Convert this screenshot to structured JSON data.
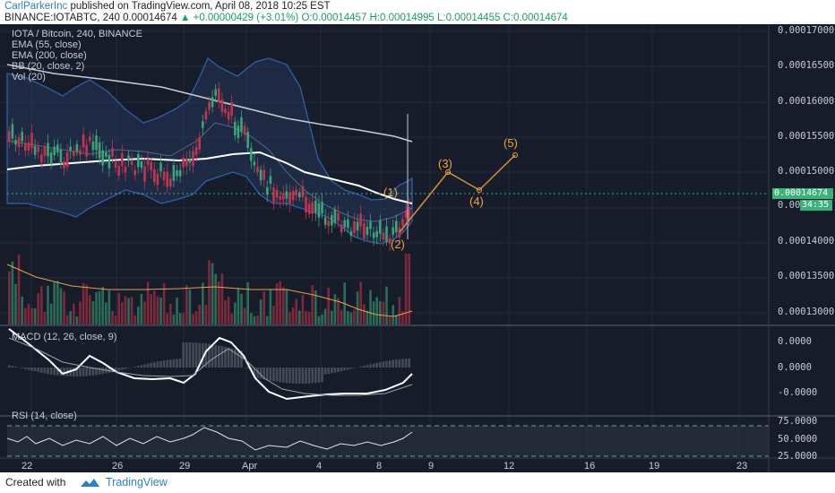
{
  "header": {
    "author": "CarlParkerInc",
    "published_text": "published on TradingView.com, April 08, 2018 10:25 EST",
    "symbol_line": "BINANCE:IOTABTC, 240  0.00014674",
    "change": "▲ +0.00000429 (+3.01%)",
    "ohlc": "O:0.00014457 H:0.00014995 L:0.00014455 C:0.00014674"
  },
  "legend": {
    "title": "IOTA / Bitcoin, 240, BINANCE",
    "ema55": "EMA (55, close)",
    "ema200": "EMA (200, close)",
    "bb": "BB (20, close, 2)",
    "vol": "Vol (20)",
    "macd": "MACD (12, 26, close, 9)",
    "rsi": "RSI (14, close)"
  },
  "price_axis": [
    "0.00017000",
    "0.00016500",
    "0.00016000",
    "0.00015500",
    "0.00015000",
    "0.00014674",
    "0.000",
    "0.00014000",
    "0.00013500",
    "0.00013000"
  ],
  "current_price_label": "0.00014674",
  "countdown_label": "34:35",
  "macd_axis": [
    "0.0000",
    "0.0000",
    "-0.0000"
  ],
  "rsi_axis": [
    "75.0000",
    "50.0000",
    "25.0000"
  ],
  "time_axis": [
    "22",
    "26",
    "29",
    "Apr",
    "4",
    "8",
    "9",
    "12",
    "16",
    "19",
    "23"
  ],
  "waves": [
    "(1)",
    "(2)",
    "(3)",
    "(4)",
    "(5)"
  ],
  "footer": {
    "created_with": "Created with",
    "brand": "TradingView"
  },
  "colors": {
    "background": "#161c29",
    "bull": "#3fa37a",
    "bear": "#c2354e",
    "projection": "#f0a53e",
    "bb_fill": "#2a3a58"
  }
}
